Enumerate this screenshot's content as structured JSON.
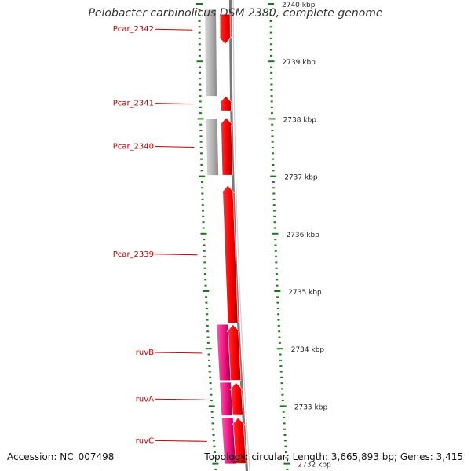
{
  "title": "Pelobacter carbinolicus DSM 2380, complete genome",
  "footer": {
    "accession": "Accession: NC_007498",
    "topology": "Topology: circular; Length: 3,665,893 bp; Genes: 3,415"
  },
  "colors": {
    "cds": "#ff0000",
    "cds_alt": "#ee1177",
    "other_gene": "#b0b0b0",
    "backbone": "#7a7a7a",
    "tick": "#1a7a1a",
    "label": "#cc0000"
  },
  "scale": {
    "unit": "kbp",
    "ticks": [
      {
        "kbp": 2740,
        "label": "2740 kbp"
      },
      {
        "kbp": 2739,
        "label": "2739 kbp"
      },
      {
        "kbp": 2738,
        "label": "2738 kbp"
      },
      {
        "kbp": 2737,
        "label": "2737 kbp"
      },
      {
        "kbp": 2736,
        "label": "2736 kbp"
      },
      {
        "kbp": 2735,
        "label": "2735 kbp"
      },
      {
        "kbp": 2734,
        "label": "2734 kbp"
      },
      {
        "kbp": 2733,
        "label": "2733 kbp"
      },
      {
        "kbp": 2732,
        "label": "2732 kbp"
      }
    ]
  },
  "genes": [
    {
      "name": "Pcar_2342",
      "start_kbp": 2739.82,
      "end_kbp": 2739.3,
      "kind": "cds",
      "strand": "reverse"
    },
    {
      "name": "Pcar_2341",
      "start_kbp": 2738.14,
      "end_kbp": 2738.4,
      "kind": "cds",
      "strand": "forward"
    },
    {
      "name": "Pcar_2340",
      "start_kbp": 2737.02,
      "end_kbp": 2738.02,
      "kind": "cds",
      "strand": "forward"
    },
    {
      "name": "Pcar_2339",
      "start_kbp": 2734.45,
      "end_kbp": 2736.84,
      "kind": "cds",
      "strand": "forward"
    },
    {
      "name": "ruvB",
      "start_kbp": 2733.45,
      "end_kbp": 2734.42,
      "kind": "cds",
      "strand": "forward"
    },
    {
      "name": "ruvA",
      "start_kbp": 2732.84,
      "end_kbp": 2733.41,
      "kind": "cds",
      "strand": "forward"
    },
    {
      "name": "ruvC",
      "start_kbp": 2732.0,
      "end_kbp": 2732.8,
      "kind": "cds",
      "strand": "forward"
    }
  ],
  "secondary_features": [
    {
      "kind": "other_gene",
      "start_kbp": 2738.4,
      "end_kbp": 2739.9
    },
    {
      "kind": "other_gene",
      "start_kbp": 2737.02,
      "end_kbp": 2738.0
    },
    {
      "kind": "cds_alt",
      "start_kbp": 2733.45,
      "end_kbp": 2734.42
    },
    {
      "kind": "cds_alt",
      "start_kbp": 2732.84,
      "end_kbp": 2733.41
    },
    {
      "kind": "cds_alt",
      "start_kbp": 2732.0,
      "end_kbp": 2732.8
    }
  ]
}
